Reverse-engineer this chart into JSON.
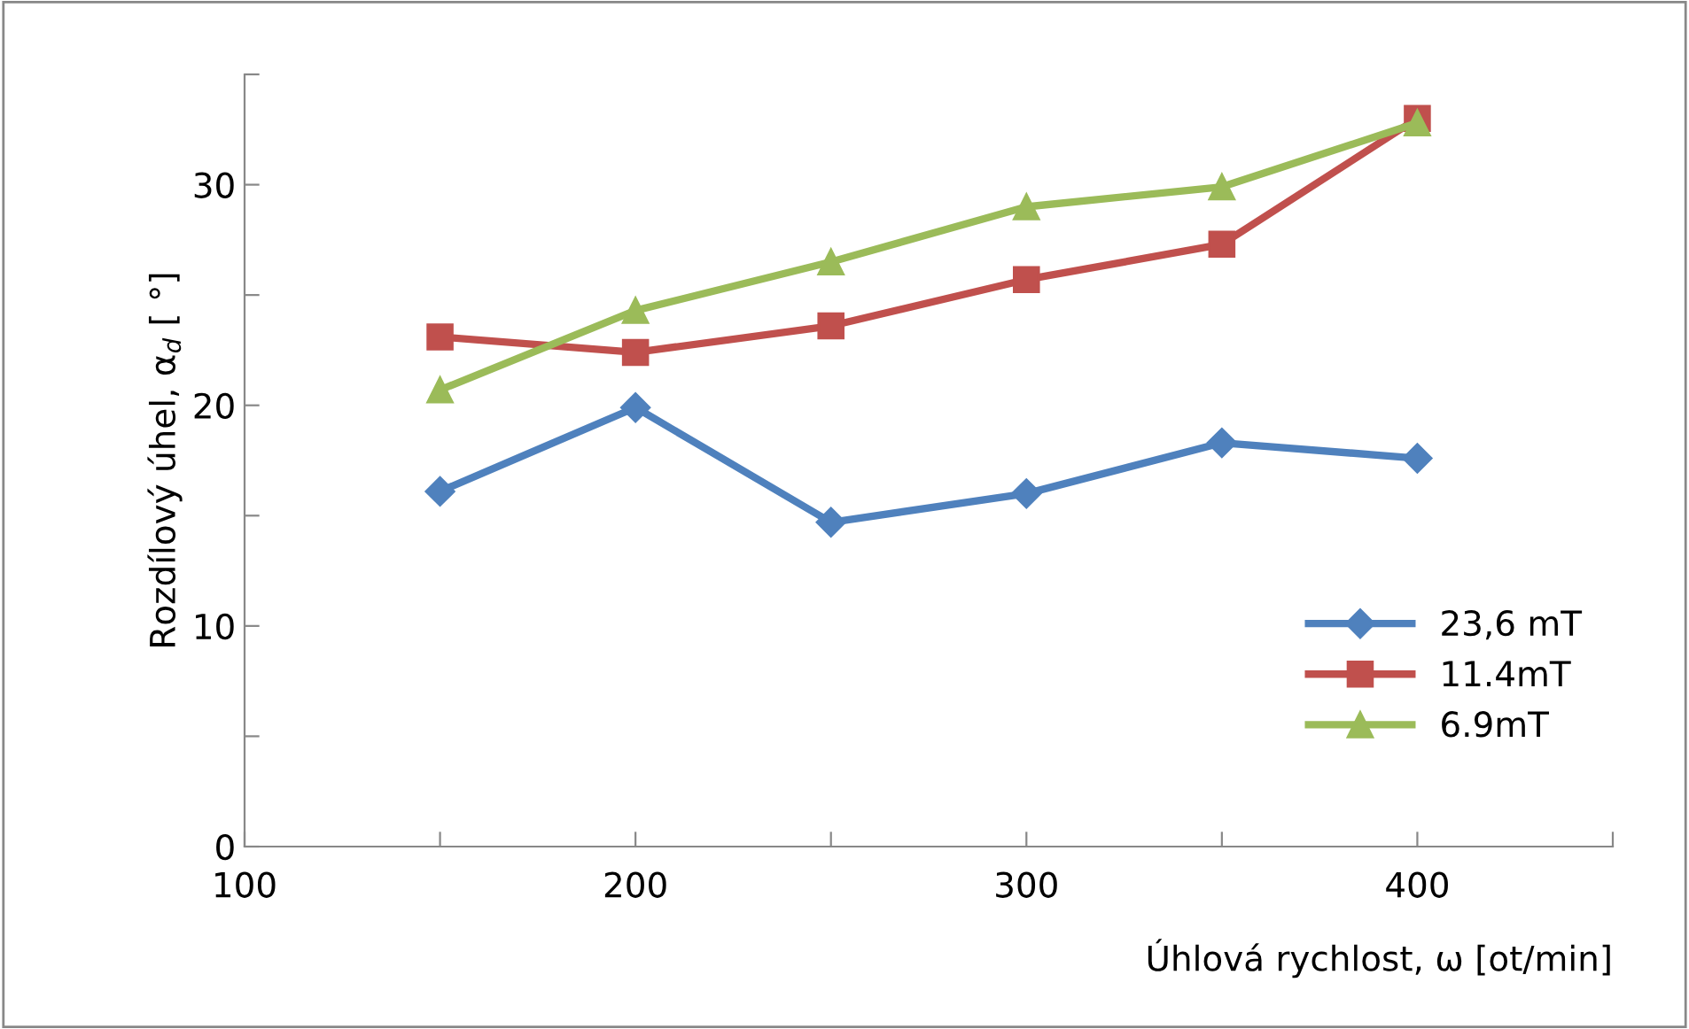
{
  "chart_data": {
    "type": "line",
    "xlabel": "Úhlová rychlost, ω [ot/min]",
    "ylabel": "Rozdílový úhel, α$_{d}$ [ °]",
    "x": [
      150,
      200,
      250,
      300,
      350,
      400
    ],
    "series": [
      {
        "name": "23,6 mT",
        "color": "#4f81bd",
        "marker": "diamond",
        "values": [
          16.1,
          19.9,
          14.7,
          16.0,
          18.3,
          17.6
        ]
      },
      {
        "name": "11.4mT",
        "color": "#c0504d",
        "marker": "square",
        "values": [
          23.1,
          22.4,
          23.6,
          25.7,
          27.3,
          33.0
        ]
      },
      {
        "name": "6.9mT",
        "color": "#9bbb59",
        "marker": "triangle",
        "values": [
          20.7,
          24.3,
          26.5,
          29.0,
          29.9,
          32.8
        ]
      }
    ],
    "xlim": [
      100,
      450
    ],
    "ylim": [
      0,
      35
    ],
    "xticks": [
      100,
      {
        "value": 150,
        "label": null
      },
      200,
      {
        "value": 250,
        "label": null
      },
      300,
      {
        "value": 350,
        "label": null
      },
      400,
      {
        "value": 450,
        "label": null
      }
    ],
    "yticks": [
      0,
      {
        "value": 5,
        "label": null
      },
      10,
      {
        "value": 15,
        "label": null
      },
      20,
      {
        "value": 25,
        "label": null
      },
      30,
      {
        "value": 35,
        "label": null
      }
    ],
    "grid": false,
    "legend": "right",
    "line_style": "solid"
  }
}
